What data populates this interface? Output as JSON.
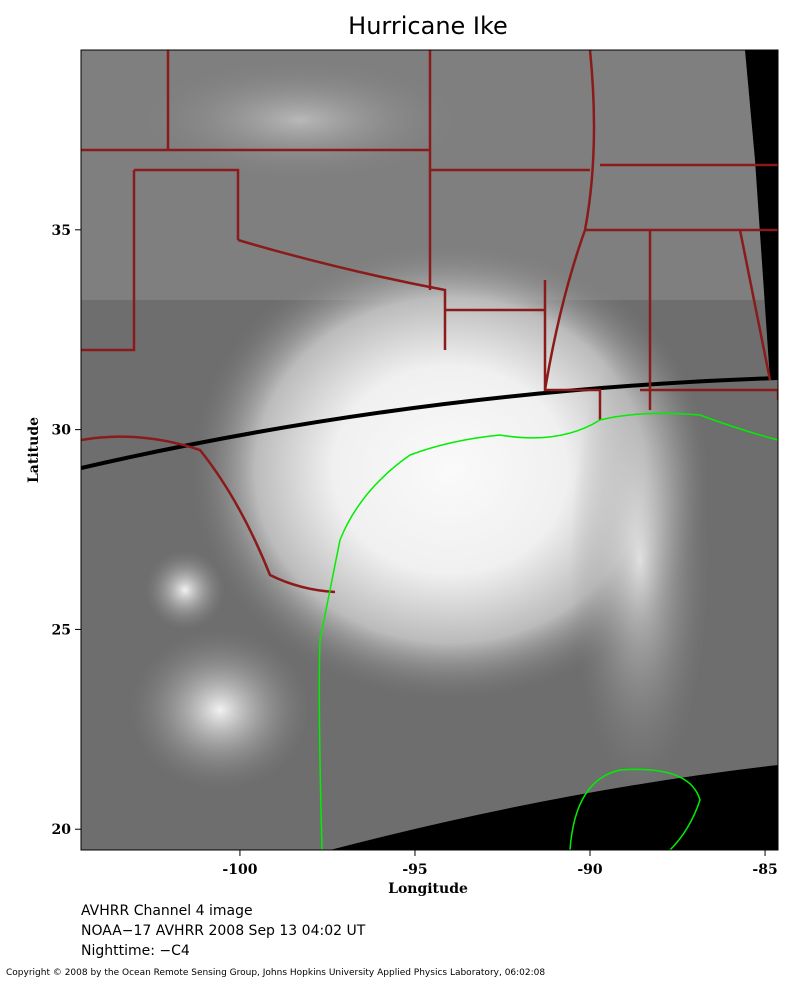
{
  "map": {
    "title": "Hurricane Ike",
    "x_label": "Longitude",
    "y_label": "Latitude",
    "xlim": [
      -104.54,
      -84.63
    ],
    "ylim": [
      19.48,
      39.5
    ],
    "xticks": [
      -100,
      -95,
      -90,
      -85
    ],
    "yticks": [
      20,
      25,
      30,
      35
    ]
  },
  "caption": [
    "AVHRR Channel 4 image",
    "NOAA−17 AVHRR 2008 Sep 13 04:02 UT",
    "Nighttime: −C4"
  ],
  "copyright": "Copyright © 2008 by the Ocean Remote Sensing Group, Johns Hopkins University Applied Physics Laboratory, 06:02:08"
}
